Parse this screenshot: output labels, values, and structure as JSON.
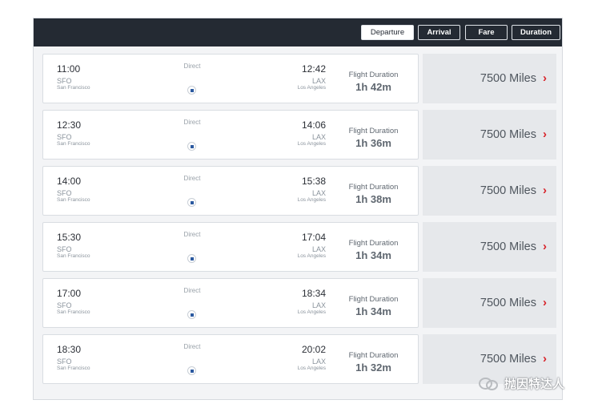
{
  "sort_bar": {
    "buttons": [
      {
        "label": "Departure",
        "active": true
      },
      {
        "label": "Arrival",
        "active": false
      },
      {
        "label": "Fare",
        "active": false
      },
      {
        "label": "Duration",
        "active": false
      }
    ]
  },
  "flights": [
    {
      "dep_time": "11:00",
      "dep_code": "SFO",
      "dep_city": "San Francisco",
      "stops": "Direct",
      "arr_time": "12:42",
      "arr_code": "LAX",
      "arr_city": "Los Angeles",
      "duration_label": "Flight Duration",
      "duration": "1h 42m",
      "fare": "7500 Miles"
    },
    {
      "dep_time": "12:30",
      "dep_code": "SFO",
      "dep_city": "San Francisco",
      "stops": "Direct",
      "arr_time": "14:06",
      "arr_code": "LAX",
      "arr_city": "Los Angeles",
      "duration_label": "Flight Duration",
      "duration": "1h 36m",
      "fare": "7500 Miles"
    },
    {
      "dep_time": "14:00",
      "dep_code": "SFO",
      "dep_city": "San Francisco",
      "stops": "Direct",
      "arr_time": "15:38",
      "arr_code": "LAX",
      "arr_city": "Los Angeles",
      "duration_label": "Flight Duration",
      "duration": "1h 38m",
      "fare": "7500 Miles"
    },
    {
      "dep_time": "15:30",
      "dep_code": "SFO",
      "dep_city": "San Francisco",
      "stops": "Direct",
      "arr_time": "17:04",
      "arr_code": "LAX",
      "arr_city": "Los Angeles",
      "duration_label": "Flight Duration",
      "duration": "1h 34m",
      "fare": "7500 Miles"
    },
    {
      "dep_time": "17:00",
      "dep_code": "SFO",
      "dep_city": "San Francisco",
      "stops": "Direct",
      "arr_time": "18:34",
      "arr_code": "LAX",
      "arr_city": "Los Angeles",
      "duration_label": "Flight Duration",
      "duration": "1h 34m",
      "fare": "7500 Miles"
    },
    {
      "dep_time": "18:30",
      "dep_code": "SFO",
      "dep_city": "San Francisco",
      "stops": "Direct",
      "arr_time": "20:02",
      "arr_code": "LAX",
      "arr_city": "Los Angeles",
      "duration_label": "Flight Duration",
      "duration": "1h 32m",
      "fare": "7500 Miles"
    }
  ],
  "icons": {
    "fare_chevron": "chevron-right-icon",
    "airline": "airline-logo-icon"
  },
  "colors": {
    "header_bg": "#242a33",
    "accent": "#d8232a",
    "fare_bg": "#e6e8eb"
  },
  "watermark": {
    "text": "抛因特达人"
  }
}
